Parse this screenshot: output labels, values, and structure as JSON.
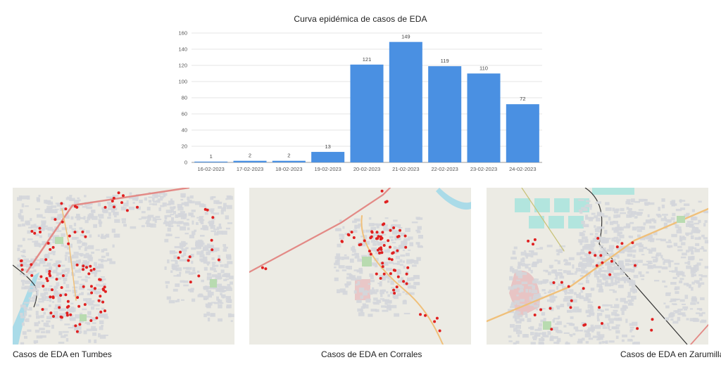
{
  "chart_data": {
    "type": "bar",
    "title": "Curva epidémica de casos de EDA",
    "xlabel": "",
    "ylabel": "",
    "categories": [
      "16-02-2023",
      "17-02-2023",
      "18-02-2023",
      "19-02-2023",
      "20-02-2023",
      "21-02-2023",
      "22-02-2023",
      "23-02-2023",
      "24-02-2023"
    ],
    "values": [
      1,
      2,
      2,
      13,
      121,
      149,
      119,
      110,
      72
    ],
    "ylim": [
      0,
      160
    ],
    "yticks": [
      0,
      20,
      40,
      60,
      80,
      100,
      120,
      140,
      160
    ],
    "grid": true,
    "bar_color": "#4a90e2",
    "data_labels": true
  },
  "maps": [
    {
      "caption": "Casos de EDA en Tumbes"
    },
    {
      "caption": "Casos de EDA en Corrales"
    },
    {
      "caption": "Casos de EDA en Zarumilla"
    }
  ],
  "colors": {
    "map_background": "#ecebe4",
    "urban_area": "#d4d6da",
    "road_major": "#e38a86",
    "road_secondary": "#f0c07a",
    "river": "#aadbe8",
    "park": "#b8dbb0",
    "case_dot": "#e02020"
  }
}
